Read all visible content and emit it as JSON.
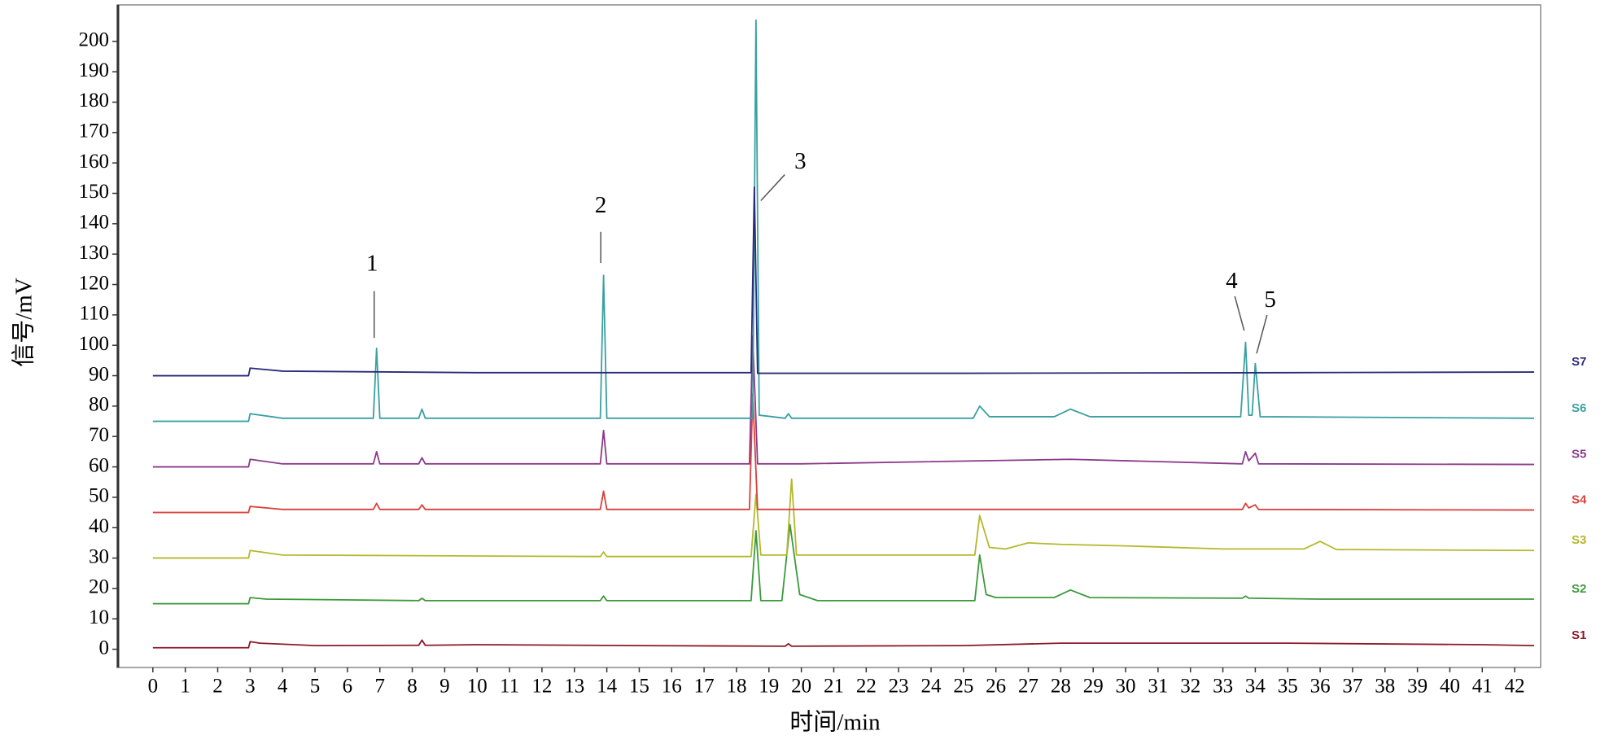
{
  "chart_data": {
    "type": "line",
    "x_label": "时间/min",
    "y_label": "信号/mV",
    "xlim": [
      -1.1,
      42.8
    ],
    "ylim": [
      -6,
      212
    ],
    "xticks": [
      0,
      1,
      2,
      3,
      4,
      5,
      6,
      7,
      8,
      9,
      10,
      11,
      12,
      13,
      14,
      15,
      16,
      17,
      18,
      19,
      20,
      21,
      22,
      23,
      24,
      25,
      26,
      27,
      28,
      29,
      30,
      31,
      32,
      33,
      34,
      35,
      36,
      37,
      38,
      39,
      40,
      41,
      42
    ],
    "yticks": [
      0,
      10,
      20,
      30,
      40,
      50,
      60,
      70,
      80,
      90,
      100,
      110,
      120,
      130,
      140,
      150,
      160,
      170,
      180,
      190,
      200
    ],
    "grid": false,
    "legend": "right",
    "annotations": [
      {
        "text": "1"
      },
      {
        "text": "2"
      },
      {
        "text": "3"
      },
      {
        "text": "4"
      },
      {
        "text": "5"
      }
    ],
    "series": [
      {
        "name": "S1",
        "color": "#8b1a2a",
        "x": [
          0,
          2.95,
          3.0,
          3.3,
          5,
          8.2,
          8.3,
          8.4,
          10,
          15,
          19.5,
          19.6,
          19.7,
          25,
          28,
          35,
          41,
          42.6
        ],
        "values": [
          0.5,
          0.5,
          2.5,
          2,
          1.2,
          1.3,
          3,
          1.3,
          1.5,
          1.2,
          1,
          1.8,
          1,
          1.2,
          2,
          2,
          1.5,
          1.2
        ]
      },
      {
        "name": "S2",
        "color": "#3a9a3a",
        "x": [
          0,
          2.95,
          3.0,
          3.5,
          8.2,
          8.3,
          8.4,
          13.8,
          13.9,
          14.0,
          18.45,
          18.6,
          18.75,
          19.4,
          19.65,
          19.95,
          20.5,
          25.35,
          25.5,
          25.7,
          26,
          27.8,
          28.3,
          28.9,
          33.6,
          33.7,
          33.8,
          36,
          42.6
        ],
        "values": [
          15,
          15,
          17,
          16.5,
          16,
          16.8,
          16,
          16,
          17.5,
          16,
          16,
          39,
          16,
          16,
          41,
          18,
          16,
          16,
          31,
          18,
          17,
          17,
          19.5,
          17,
          16.8,
          17.5,
          16.8,
          16.5,
          16.5
        ]
      },
      {
        "name": "S3",
        "color": "#b5b82a",
        "x": [
          0,
          2.95,
          3.0,
          4,
          13.8,
          13.9,
          14.0,
          18.45,
          18.6,
          18.75,
          19.55,
          19.7,
          19.85,
          25.35,
          25.5,
          25.8,
          26.3,
          27,
          28,
          30,
          33,
          35.5,
          36,
          36.5,
          42.6
        ],
        "values": [
          30,
          30,
          32.5,
          31,
          30.5,
          32,
          30.5,
          30.5,
          51,
          31,
          31,
          56,
          31,
          31,
          44,
          33.5,
          33,
          35,
          34.5,
          34,
          33,
          33,
          35.5,
          32.8,
          32.5
        ]
      },
      {
        "name": "S4",
        "color": "#d9403a",
        "x": [
          0,
          2.95,
          3.0,
          4,
          6.8,
          6.9,
          7.0,
          8.2,
          8.3,
          8.4,
          13.8,
          13.9,
          14.0,
          18.4,
          18.5,
          18.65,
          20,
          33.6,
          33.7,
          33.8,
          34.0,
          34.1,
          42.6
        ],
        "values": [
          45,
          45,
          47,
          46,
          46,
          48,
          46,
          46,
          47.5,
          46,
          46,
          52,
          46,
          46,
          84,
          46,
          46,
          46,
          48,
          46.5,
          47.5,
          46,
          45.8
        ]
      },
      {
        "name": "S5",
        "color": "#8a3a8a",
        "x": [
          0,
          2.95,
          3.0,
          4,
          6.8,
          6.9,
          7.0,
          8.2,
          8.3,
          8.4,
          13.8,
          13.9,
          14.0,
          18.4,
          18.5,
          18.65,
          20,
          28.3,
          33.6,
          33.7,
          33.8,
          34.0,
          34.1,
          42.6
        ],
        "values": [
          60,
          60,
          62.5,
          61,
          61,
          65,
          61,
          61,
          63,
          61,
          61,
          72,
          61,
          61,
          103,
          61,
          61,
          62.5,
          61,
          65,
          62,
          64.5,
          61,
          60.8
        ]
      },
      {
        "name": "S6",
        "color": "#3aa0a0",
        "x": [
          0,
          2.95,
          3.0,
          4,
          6.8,
          6.9,
          7.0,
          8.2,
          8.3,
          8.4,
          13.8,
          13.9,
          14.0,
          18.5,
          18.6,
          18.7,
          19.5,
          19.6,
          19.7,
          25.3,
          25.5,
          25.8,
          27.8,
          28.3,
          28.9,
          33.55,
          33.7,
          33.8,
          33.9,
          34.0,
          34.15,
          42.6
        ],
        "values": [
          75,
          75,
          77.5,
          76,
          76,
          99,
          76,
          76,
          79,
          76,
          76,
          123,
          76,
          76,
          207,
          77,
          76,
          77.5,
          76,
          76,
          80,
          76.5,
          76.5,
          79,
          76.5,
          76.5,
          101,
          77,
          77,
          94,
          76.5,
          76
        ]
      },
      {
        "name": "S7",
        "color": "#2a2a7a",
        "x": [
          0,
          2.95,
          3.0,
          4,
          10,
          18.45,
          18.55,
          18.65,
          25,
          35,
          42.6
        ],
        "values": [
          90,
          90,
          92.5,
          91.5,
          91,
          91,
          152,
          90.8,
          90.8,
          91,
          91.2
        ]
      }
    ]
  }
}
